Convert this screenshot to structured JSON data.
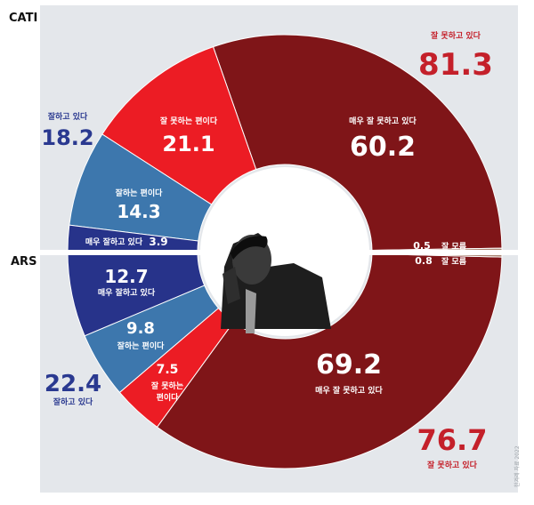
{
  "chart_data": {
    "type": "pie",
    "surveys": [
      {
        "name": "CATI",
        "total_positive": {
          "label": "잘하고 있다",
          "value": "18.2"
        },
        "total_negative": {
          "label": "잘 못하고 있다",
          "value": "81.3"
        },
        "segments": [
          {
            "label": "매우 잘 못하고 있다",
            "value": 60.2,
            "color": "#7f1518"
          },
          {
            "label": "잘 못하는 편이다",
            "value": 21.1,
            "color": "#ec1c24"
          },
          {
            "label": "잘하는 편이다",
            "value": 14.3,
            "color": "#3d77ad"
          },
          {
            "label": "매우 잘하고 있다",
            "value": 3.9,
            "color": "#27338a"
          },
          {
            "label": "잘 모름",
            "value": 0.5,
            "color": "#a98472"
          }
        ]
      },
      {
        "name": "ARS",
        "total_positive": {
          "label": "잘하고 있다",
          "value": "22.4"
        },
        "total_negative": {
          "label": "잘 못하고 있다",
          "value": "76.7"
        },
        "segments": [
          {
            "label": "매우 잘하고 있다",
            "value": 12.7,
            "color": "#27338a"
          },
          {
            "label": "잘하는 편이다",
            "value": 9.8,
            "color": "#3d77ad"
          },
          {
            "label": "잘 못하는 편이다",
            "value": 7.5,
            "color": "#ec1c24"
          },
          {
            "label": "매우 잘 못하고 있다",
            "value": 69.2,
            "color": "#7f1518"
          },
          {
            "label": "잘 모름",
            "value": 0.8,
            "color": "#a98472"
          }
        ]
      }
    ]
  },
  "colors": {
    "panel": "#e4e7eb",
    "positive_text": "#2a3990",
    "negative_text": "#c4202a",
    "divider": "#ffffff"
  },
  "center_image": "photo of person on phone",
  "credit": "한겨레 자료 2022"
}
